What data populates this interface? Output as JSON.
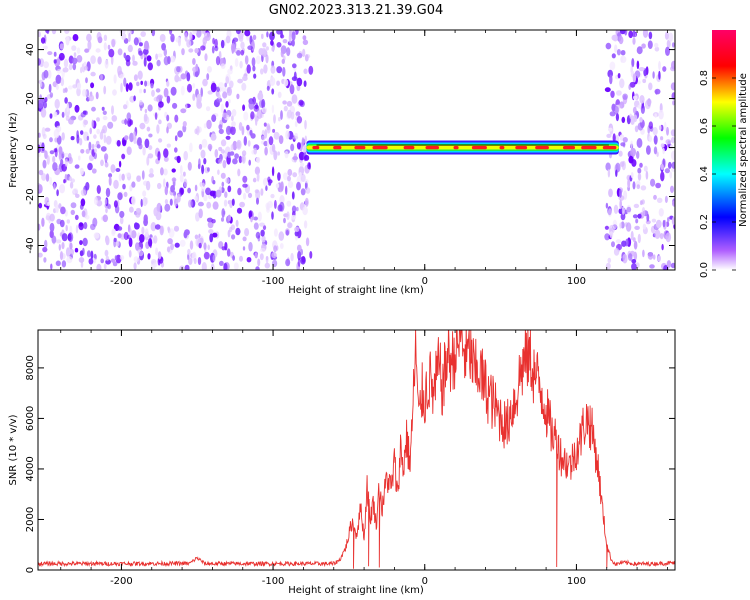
{
  "title": "GN02.2023.313.21.39.G04",
  "chart_data": [
    {
      "type": "heatmap",
      "xlabel": "Height of straight line (km)",
      "ylabel": "Frequency (Hz)",
      "xlim": [
        -255,
        165
      ],
      "ylim": [
        -50,
        48
      ],
      "xticks": [
        -200,
        -100,
        0,
        100
      ],
      "xtick_labels": [
        "-200",
        "-100",
        "0",
        "100"
      ],
      "yticks": [
        -40,
        -20,
        0,
        20,
        40
      ],
      "ytick_labels": [
        "-40",
        "-20",
        "0",
        "20",
        "40"
      ],
      "colorbar": {
        "label": "Normalized spectral amplitude",
        "range": [
          0,
          1
        ],
        "ticks": [
          0.0,
          0.2,
          0.4,
          0.6,
          0.8
        ],
        "tick_labels": [
          "0.0",
          "0.2",
          "0.4",
          "0.6",
          "0.8"
        ],
        "colors": [
          "#ffffff",
          "#b060ff",
          "#0000ff",
          "#00ffff",
          "#00ff00",
          "#ffff00",
          "#ff0000",
          "#ff0066"
        ]
      },
      "noise_regions_km": [
        [
          -255,
          -75
        ],
        [
          120,
          165
        ]
      ],
      "signal": {
        "x_range_km": [
          -78,
          128
        ],
        "frequency_hz": 0,
        "amplitude_note": "peak ~0.8-0.9 along 0 Hz"
      },
      "grid": false
    },
    {
      "type": "line",
      "xlabel": "Height of straight line (km)",
      "ylabel": "SNR (10 * v/v)",
      "xlim": [
        -255,
        165
      ],
      "ylim": [
        0,
        9500
      ],
      "xticks": [
        -200,
        -100,
        0,
        100
      ],
      "xtick_labels": [
        "-200",
        "-100",
        "0",
        "100"
      ],
      "yticks": [
        0,
        2000,
        4000,
        6000,
        8000
      ],
      "ytick_labels": [
        "0",
        "2000",
        "4000",
        "6000",
        "8000"
      ],
      "line_color": "#e8312f",
      "x": [
        -255,
        -200,
        -155,
        -150,
        -145,
        -100,
        -60,
        -56,
        -52,
        -48,
        -45,
        -42,
        -40,
        -38,
        -36,
        -34,
        -32,
        -30,
        -28,
        -25,
        -22,
        -20,
        -18,
        -16,
        -14,
        -12,
        -10,
        -8,
        -6,
        -4,
        -2,
        0,
        3,
        6,
        9,
        12,
        15,
        18,
        21,
        24,
        27,
        30,
        33,
        36,
        39,
        42,
        45,
        48,
        51,
        54,
        57,
        60,
        63,
        66,
        69,
        72,
        75,
        78,
        81,
        84,
        87,
        90,
        93,
        96,
        99,
        102,
        105,
        108,
        111,
        114,
        117,
        120,
        123,
        126,
        130,
        140,
        150,
        165
      ],
      "y": [
        250,
        250,
        260,
        480,
        250,
        250,
        250,
        400,
        900,
        1900,
        1400,
        2500,
        1200,
        3400,
        2000,
        2700,
        1800,
        3300,
        2400,
        3700,
        3200,
        4300,
        3000,
        4800,
        4000,
        5300,
        4200,
        6000,
        8800,
        5800,
        7000,
        6800,
        7600,
        6900,
        8000,
        7200,
        8600,
        8200,
        8800,
        9200,
        8400,
        8600,
        7700,
        8000,
        7300,
        7000,
        6600,
        6200,
        6000,
        5600,
        6400,
        6800,
        7800,
        8300,
        8500,
        7800,
        7400,
        6900,
        6100,
        5400,
        5200,
        4500,
        4300,
        4100,
        4700,
        5000,
        5800,
        6000,
        5300,
        4200,
        2500,
        1000,
        400,
        220,
        300,
        240,
        250,
        280
      ],
      "grid": false
    }
  ]
}
